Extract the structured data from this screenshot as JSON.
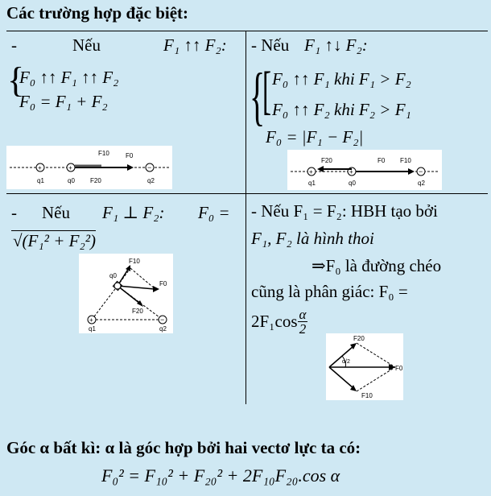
{
  "heading": "Các trường hợp đặc biệt:",
  "cell_tl": {
    "dash": "-",
    "neu": "Nếu",
    "cond": "F₁ ↑↑ F₂:",
    "sys1": "F₀ ↑↑ F₁ ↑↑ F₂",
    "sys2": "F₀ = F₁ + F₂",
    "fig_labels": {
      "f10": "F10",
      "f0": "F0",
      "f20": "F20",
      "q1": "q1",
      "q0": "q0",
      "q2": "q2"
    }
  },
  "cell_tr": {
    "lead": "- Nếu",
    "cond": "F₁ ↑↓ F₂:",
    "sys1": "F₀ ↑↑ F₁ khi F₁ > F₂",
    "sys2": "F₀ ↑↑ F₂ khi F₂ > F₁",
    "sys3": "F₀ = |F₁ − F₂|",
    "fig_labels": {
      "f20": "F20",
      "f0": "F0",
      "f10": "F10",
      "q1": "q1",
      "q0": "q0",
      "q2": "q2"
    }
  },
  "cell_bl": {
    "dash": "-",
    "neu": "Nếu",
    "cond": "F₁ ⊥ F₂:",
    "f0eq": "F₀ =",
    "root": "√(F₁² + F₂²)",
    "fig_labels": {
      "f10": "F10",
      "q0": "q0",
      "f0": "F0",
      "f20": "F20",
      "q1": "q1",
      "q2": "q2"
    }
  },
  "cell_br": {
    "l1": "- Nếu F₁ = F₂: HBH tạo bởi",
    "l2": "F₁, F₂ là hình thoi",
    "l3": "⇒F₀ là đường chéo",
    "l4": "cũng là phân giác: F₀ =",
    "l5a": "2F₁cos",
    "frac_n": "α",
    "frac_d": "2",
    "fig_labels": {
      "f20": "F20",
      "alpha": "α/2",
      "f0": "F0",
      "f10": "F10"
    }
  },
  "footer": {
    "line1": "Góc α bất kì: α là góc hợp bởi hai vectơ lực ta có:",
    "formula": "F₀² = F₁₀² + F₂₀² + 2F₁₀F₂₀.cos α"
  }
}
